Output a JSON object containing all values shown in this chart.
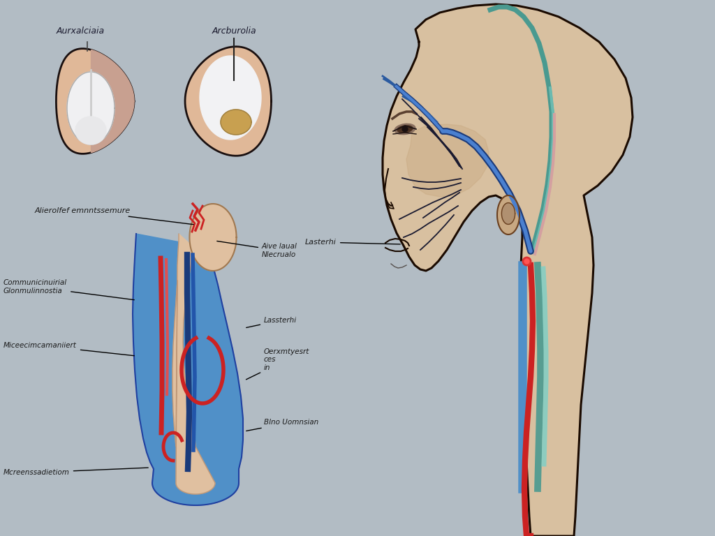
{
  "background_color": "#b2bcc4",
  "skin_color": "#d4bfa0",
  "skin_dark": "#c8a882",
  "skin_light": "#e8d8c0",
  "blue_vessel": "#5090c8",
  "blue_dark": "#1a3a7a",
  "red_vessel": "#cc2222",
  "teal_vessel": "#4a9a90",
  "pink_vessel": "#d4a0a0",
  "outline_color": "#1a1010",
  "label_color": "#1a1a1a",
  "ear_labels": [
    "Aurxalciaia",
    "Arcburolia"
  ],
  "detail_labels": {
    "top": "Alierolfef emnntssemure",
    "left1": "Communicinuirial\nGlonmulinnostia",
    "left2": "Miceecimcamaniiert",
    "left3": "Mcreenssadietiom",
    "right1": "Aive laual\nNlecrualo",
    "right2": "Lassterhi",
    "right3": "Oerxmtyesrt\nces\nin",
    "right4": "Blno Uomnsian"
  },
  "profile_label": "Lasterhi"
}
